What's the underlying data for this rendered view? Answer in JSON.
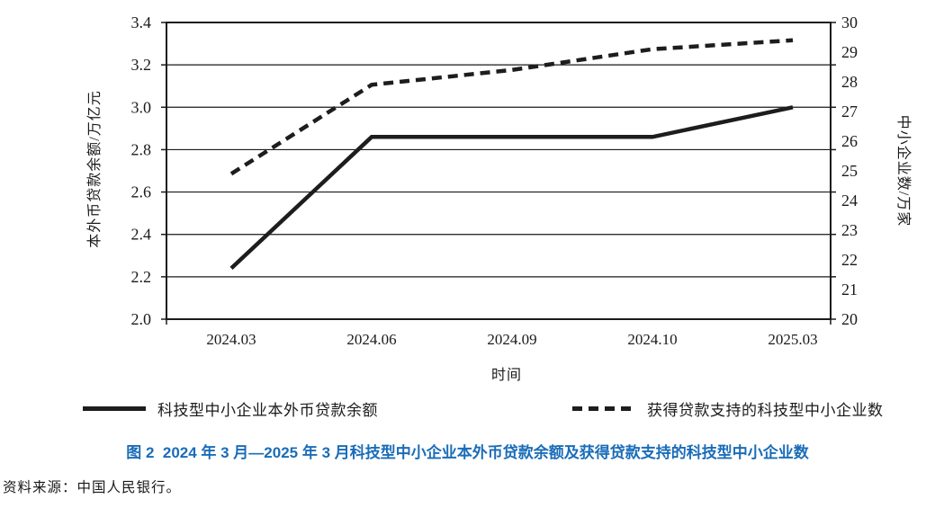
{
  "figure": {
    "caption": "图 2  2024 年 3 月—2025 年 3 月科技型中小企业本外币贷款余额及获得贷款支持的科技型中小企业数",
    "caption_color": "#1a6cb8",
    "source_note": "资料来源：中国人民银行。"
  },
  "chart_data": {
    "type": "line",
    "x_categories": [
      "2024.03",
      "2024.06",
      "2024.09",
      "2024.10",
      "2025.03"
    ],
    "xlabel": "时间",
    "left_axis": {
      "label": "本外币贷款余额/万亿元",
      "min": 2.0,
      "max": 3.4,
      "ticks": [
        "3.4",
        "3.2",
        "3.0",
        "2.8",
        "2.6",
        "2.4",
        "2.2",
        "2.0"
      ]
    },
    "right_axis": {
      "label": "中小企业数/万家",
      "min": 20,
      "max": 30,
      "ticks": [
        "30",
        "29",
        "28",
        "27",
        "26",
        "25",
        "24",
        "23",
        "22",
        "21",
        "20"
      ]
    },
    "series": [
      {
        "name": "科技型中小企业本外币贷款余额",
        "axis": "left",
        "style": "solid",
        "color": "#1d1d1b",
        "values": [
          2.24,
          2.86,
          2.86,
          2.86,
          3.0
        ]
      },
      {
        "name": "获得贷款支持的科技型中小企业数",
        "axis": "right",
        "style": "dashed",
        "color": "#1d1d1b",
        "values": [
          24.9,
          27.9,
          28.4,
          29.1,
          29.4
        ]
      }
    ],
    "grid": "horizontal",
    "legend_position": "bottom"
  }
}
